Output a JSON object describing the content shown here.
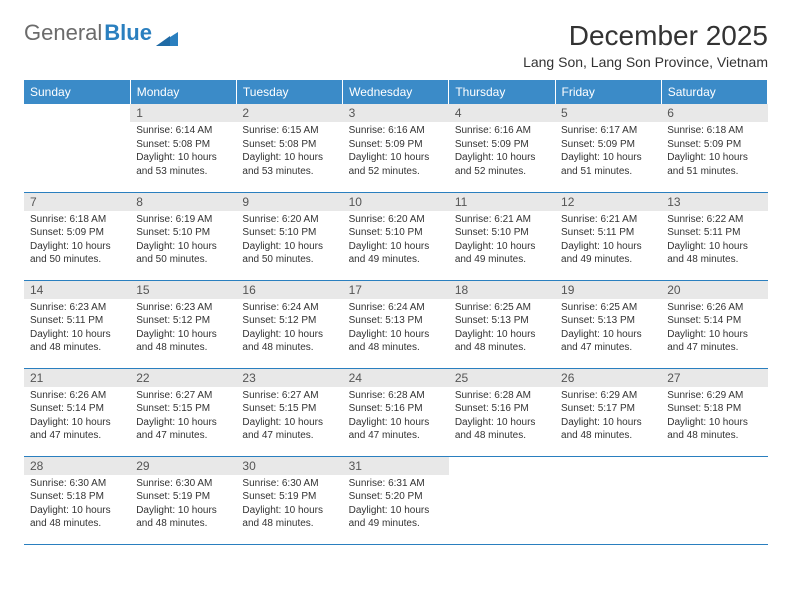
{
  "brand": {
    "part1": "General",
    "part2": "Blue"
  },
  "title": "December 2025",
  "location": "Lang Son, Lang Son Province, Vietnam",
  "colors": {
    "header_bg": "#3b8bc8",
    "header_text": "#ffffff",
    "daynum_bg": "#e8e8e8",
    "border": "#2a7fbf",
    "text": "#333333",
    "brand_grey": "#6b6b6b",
    "brand_blue": "#2a7fbf"
  },
  "weekdays": [
    "Sunday",
    "Monday",
    "Tuesday",
    "Wednesday",
    "Thursday",
    "Friday",
    "Saturday"
  ],
  "weeks": [
    [
      {
        "n": "",
        "l1": "",
        "l2": "",
        "l3": "",
        "l4": ""
      },
      {
        "n": "1",
        "l1": "Sunrise: 6:14 AM",
        "l2": "Sunset: 5:08 PM",
        "l3": "Daylight: 10 hours",
        "l4": "and 53 minutes."
      },
      {
        "n": "2",
        "l1": "Sunrise: 6:15 AM",
        "l2": "Sunset: 5:08 PM",
        "l3": "Daylight: 10 hours",
        "l4": "and 53 minutes."
      },
      {
        "n": "3",
        "l1": "Sunrise: 6:16 AM",
        "l2": "Sunset: 5:09 PM",
        "l3": "Daylight: 10 hours",
        "l4": "and 52 minutes."
      },
      {
        "n": "4",
        "l1": "Sunrise: 6:16 AM",
        "l2": "Sunset: 5:09 PM",
        "l3": "Daylight: 10 hours",
        "l4": "and 52 minutes."
      },
      {
        "n": "5",
        "l1": "Sunrise: 6:17 AM",
        "l2": "Sunset: 5:09 PM",
        "l3": "Daylight: 10 hours",
        "l4": "and 51 minutes."
      },
      {
        "n": "6",
        "l1": "Sunrise: 6:18 AM",
        "l2": "Sunset: 5:09 PM",
        "l3": "Daylight: 10 hours",
        "l4": "and 51 minutes."
      }
    ],
    [
      {
        "n": "7",
        "l1": "Sunrise: 6:18 AM",
        "l2": "Sunset: 5:09 PM",
        "l3": "Daylight: 10 hours",
        "l4": "and 50 minutes."
      },
      {
        "n": "8",
        "l1": "Sunrise: 6:19 AM",
        "l2": "Sunset: 5:10 PM",
        "l3": "Daylight: 10 hours",
        "l4": "and 50 minutes."
      },
      {
        "n": "9",
        "l1": "Sunrise: 6:20 AM",
        "l2": "Sunset: 5:10 PM",
        "l3": "Daylight: 10 hours",
        "l4": "and 50 minutes."
      },
      {
        "n": "10",
        "l1": "Sunrise: 6:20 AM",
        "l2": "Sunset: 5:10 PM",
        "l3": "Daylight: 10 hours",
        "l4": "and 49 minutes."
      },
      {
        "n": "11",
        "l1": "Sunrise: 6:21 AM",
        "l2": "Sunset: 5:10 PM",
        "l3": "Daylight: 10 hours",
        "l4": "and 49 minutes."
      },
      {
        "n": "12",
        "l1": "Sunrise: 6:21 AM",
        "l2": "Sunset: 5:11 PM",
        "l3": "Daylight: 10 hours",
        "l4": "and 49 minutes."
      },
      {
        "n": "13",
        "l1": "Sunrise: 6:22 AM",
        "l2": "Sunset: 5:11 PM",
        "l3": "Daylight: 10 hours",
        "l4": "and 48 minutes."
      }
    ],
    [
      {
        "n": "14",
        "l1": "Sunrise: 6:23 AM",
        "l2": "Sunset: 5:11 PM",
        "l3": "Daylight: 10 hours",
        "l4": "and 48 minutes."
      },
      {
        "n": "15",
        "l1": "Sunrise: 6:23 AM",
        "l2": "Sunset: 5:12 PM",
        "l3": "Daylight: 10 hours",
        "l4": "and 48 minutes."
      },
      {
        "n": "16",
        "l1": "Sunrise: 6:24 AM",
        "l2": "Sunset: 5:12 PM",
        "l3": "Daylight: 10 hours",
        "l4": "and 48 minutes."
      },
      {
        "n": "17",
        "l1": "Sunrise: 6:24 AM",
        "l2": "Sunset: 5:13 PM",
        "l3": "Daylight: 10 hours",
        "l4": "and 48 minutes."
      },
      {
        "n": "18",
        "l1": "Sunrise: 6:25 AM",
        "l2": "Sunset: 5:13 PM",
        "l3": "Daylight: 10 hours",
        "l4": "and 48 minutes."
      },
      {
        "n": "19",
        "l1": "Sunrise: 6:25 AM",
        "l2": "Sunset: 5:13 PM",
        "l3": "Daylight: 10 hours",
        "l4": "and 47 minutes."
      },
      {
        "n": "20",
        "l1": "Sunrise: 6:26 AM",
        "l2": "Sunset: 5:14 PM",
        "l3": "Daylight: 10 hours",
        "l4": "and 47 minutes."
      }
    ],
    [
      {
        "n": "21",
        "l1": "Sunrise: 6:26 AM",
        "l2": "Sunset: 5:14 PM",
        "l3": "Daylight: 10 hours",
        "l4": "and 47 minutes."
      },
      {
        "n": "22",
        "l1": "Sunrise: 6:27 AM",
        "l2": "Sunset: 5:15 PM",
        "l3": "Daylight: 10 hours",
        "l4": "and 47 minutes."
      },
      {
        "n": "23",
        "l1": "Sunrise: 6:27 AM",
        "l2": "Sunset: 5:15 PM",
        "l3": "Daylight: 10 hours",
        "l4": "and 47 minutes."
      },
      {
        "n": "24",
        "l1": "Sunrise: 6:28 AM",
        "l2": "Sunset: 5:16 PM",
        "l3": "Daylight: 10 hours",
        "l4": "and 47 minutes."
      },
      {
        "n": "25",
        "l1": "Sunrise: 6:28 AM",
        "l2": "Sunset: 5:16 PM",
        "l3": "Daylight: 10 hours",
        "l4": "and 48 minutes."
      },
      {
        "n": "26",
        "l1": "Sunrise: 6:29 AM",
        "l2": "Sunset: 5:17 PM",
        "l3": "Daylight: 10 hours",
        "l4": "and 48 minutes."
      },
      {
        "n": "27",
        "l1": "Sunrise: 6:29 AM",
        "l2": "Sunset: 5:18 PM",
        "l3": "Daylight: 10 hours",
        "l4": "and 48 minutes."
      }
    ],
    [
      {
        "n": "28",
        "l1": "Sunrise: 6:30 AM",
        "l2": "Sunset: 5:18 PM",
        "l3": "Daylight: 10 hours",
        "l4": "and 48 minutes."
      },
      {
        "n": "29",
        "l1": "Sunrise: 6:30 AM",
        "l2": "Sunset: 5:19 PM",
        "l3": "Daylight: 10 hours",
        "l4": "and 48 minutes."
      },
      {
        "n": "30",
        "l1": "Sunrise: 6:30 AM",
        "l2": "Sunset: 5:19 PM",
        "l3": "Daylight: 10 hours",
        "l4": "and 48 minutes."
      },
      {
        "n": "31",
        "l1": "Sunrise: 6:31 AM",
        "l2": "Sunset: 5:20 PM",
        "l3": "Daylight: 10 hours",
        "l4": "and 49 minutes."
      },
      {
        "n": "",
        "l1": "",
        "l2": "",
        "l3": "",
        "l4": ""
      },
      {
        "n": "",
        "l1": "",
        "l2": "",
        "l3": "",
        "l4": ""
      },
      {
        "n": "",
        "l1": "",
        "l2": "",
        "l3": "",
        "l4": ""
      }
    ]
  ]
}
